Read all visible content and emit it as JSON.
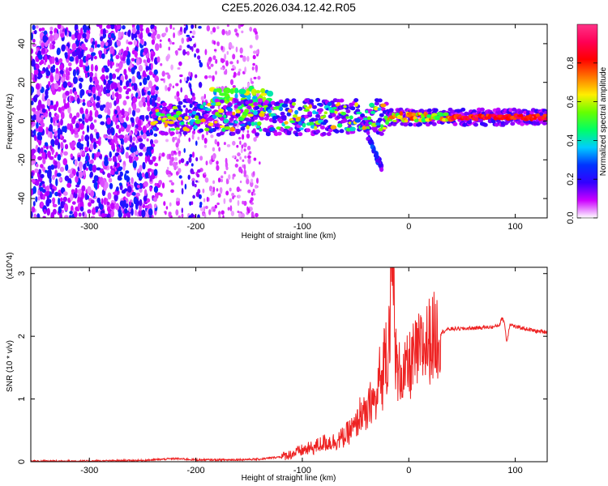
{
  "figure_title": "C2E5.2026.034.12.42.R05",
  "chart_data": [
    {
      "type": "heatmap",
      "name": "spectrogram",
      "title": "C2E5.2026.034.12.42.R05",
      "xlabel": "Height of straight line (km)",
      "ylabel": "Frequency (Hz)",
      "xlim": [
        -355,
        130
      ],
      "ylim": [
        -50,
        50
      ],
      "xticks": [
        -300,
        -200,
        -100,
        0,
        100
      ],
      "yticks": [
        -40,
        -20,
        0,
        20,
        40
      ],
      "colorbar": {
        "label": "Normalized spectral amplitude",
        "range": [
          0,
          1
        ],
        "ticks": [
          0.0,
          0.2,
          0.4,
          0.6,
          0.8
        ],
        "tick_labels": [
          "0.0",
          "0.2",
          "0.4",
          "0.6",
          "0.8"
        ],
        "colors": [
          "#ffffff",
          "#cc00ff",
          "#3300ff",
          "#0033ff",
          "#00ccff",
          "#00ff66",
          "#66ff00",
          "#ffee00",
          "#ff7700",
          "#ff0000",
          "#ff0055",
          "#ff3388"
        ]
      },
      "regions": [
        {
          "name": "scattered noise",
          "x": [
            -355,
            -235
          ],
          "y": [
            -50,
            50
          ],
          "amplitude": 0.15
        },
        {
          "name": "sparse noise",
          "x": [
            -235,
            -140
          ],
          "y": [
            -50,
            50
          ],
          "amplitude": 0.05
        },
        {
          "name": "upper branch",
          "x": [
            -185,
            -130
          ],
          "y": [
            8,
            17
          ],
          "amplitude": 0.55
        },
        {
          "name": "main signal",
          "x": [
            -240,
            130
          ],
          "center_freq": 2,
          "amplitude": 0.9
        },
        {
          "name": "descending branch",
          "x": [
            -40,
            -25
          ],
          "y": [
            -25,
            -5
          ],
          "amplitude": 0.3
        }
      ]
    },
    {
      "type": "line",
      "name": "snr",
      "xlabel": "Height of straight line (km)",
      "ylabel": "SNR (10 * v/v)",
      "y_multiplier": "(x10^4)",
      "xlim": [
        -355,
        130
      ],
      "ylim": [
        0,
        3.1
      ],
      "xticks": [
        -300,
        -200,
        -100,
        0,
        100
      ],
      "yticks": [
        0,
        1,
        2,
        3
      ],
      "color": "#ee2222",
      "series": [
        {
          "name": "SNR",
          "x": [
            -355,
            -300,
            -250,
            -220,
            -200,
            -170,
            -140,
            -120,
            -110,
            -100,
            -90,
            -80,
            -70,
            -60,
            -55,
            -50,
            -45,
            -40,
            -35,
            -30,
            -28,
            -25,
            -22,
            -20,
            -18,
            -15,
            -12,
            -10,
            -8,
            -5,
            -2,
            0,
            5,
            10,
            15,
            20,
            25,
            30,
            35,
            40,
            50,
            60,
            70,
            80,
            85,
            88,
            90,
            92,
            95,
            100,
            110,
            120,
            130
          ],
          "y": [
            0.01,
            0.01,
            0.02,
            0.05,
            0.03,
            0.03,
            0.04,
            0.08,
            0.12,
            0.18,
            0.22,
            0.3,
            0.32,
            0.4,
            0.5,
            0.55,
            0.8,
            0.7,
            1.0,
            0.9,
            1.4,
            1.2,
            2.0,
            1.5,
            2.4,
            3.1,
            1.6,
            1.3,
            1.5,
            1.35,
            1.45,
            1.5,
            1.65,
            1.75,
            1.85,
            1.95,
            2.0,
            2.05,
            2.1,
            2.12,
            2.12,
            2.13,
            2.14,
            2.15,
            2.18,
            2.3,
            2.2,
            1.9,
            2.2,
            2.15,
            2.12,
            2.08,
            2.07
          ]
        }
      ]
    }
  ]
}
